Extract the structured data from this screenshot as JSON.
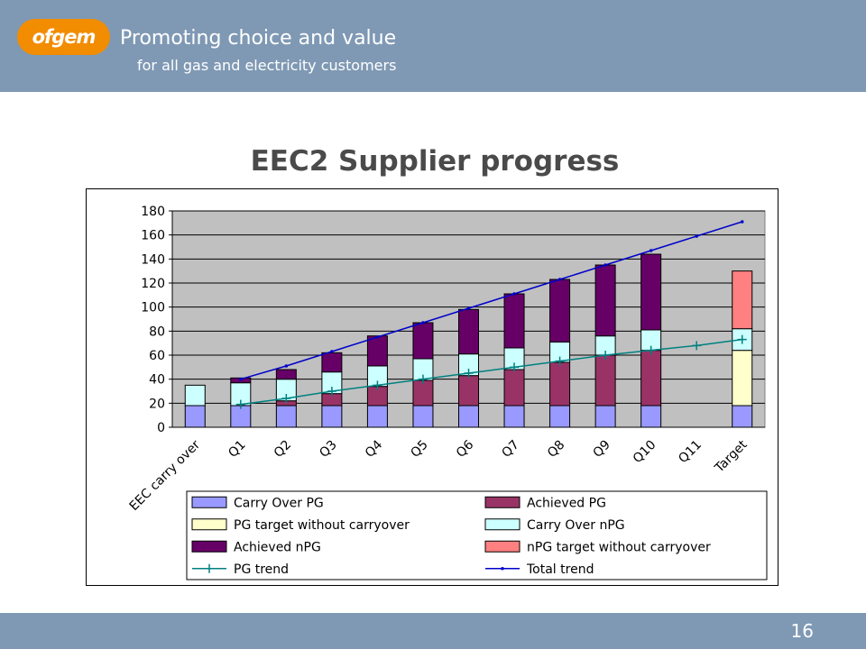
{
  "header": {
    "logo_text": "ofgem",
    "tagline_line1": "Promoting choice and value",
    "tagline_line2": "for all gas and electricity customers",
    "background_color": "#7f99b4",
    "logo_color": "#f28c00"
  },
  "slide": {
    "title": "EEC2 Supplier progress",
    "page_number": "16"
  },
  "chart_data": {
    "type": "bar",
    "stacked": true,
    "categories": [
      "EEC carry over",
      "Q1",
      "Q2",
      "Q3",
      "Q4",
      "Q5",
      "Q6",
      "Q7",
      "Q8",
      "Q9",
      "Q10",
      "Q11",
      "Target"
    ],
    "ylim": [
      0,
      180
    ],
    "yticks": [
      0,
      20,
      40,
      60,
      80,
      100,
      120,
      140,
      160,
      180
    ],
    "grid": true,
    "plot_background": "#c0c0c0",
    "legend_position": "bottom",
    "series": [
      {
        "name": "Carry Over PG",
        "kind": "bar",
        "color": "#9999ff",
        "values": [
          18,
          18,
          18,
          18,
          18,
          18,
          18,
          18,
          18,
          18,
          18,
          null,
          18
        ]
      },
      {
        "name": "Achieved PG",
        "kind": "bar",
        "color": "#993366",
        "values": [
          0,
          0,
          4,
          10,
          16,
          21,
          25,
          30,
          36,
          42,
          46,
          null,
          0
        ]
      },
      {
        "name": "PG target without carryover",
        "kind": "bar",
        "color": "#ffffcc",
        "values": [
          0,
          0,
          0,
          0,
          0,
          0,
          0,
          0,
          0,
          0,
          0,
          null,
          46
        ]
      },
      {
        "name": "Carry Over nPG",
        "kind": "bar",
        "color": "#ccffff",
        "values": [
          17,
          19,
          18,
          18,
          17,
          18,
          18,
          18,
          17,
          16,
          17,
          null,
          18
        ]
      },
      {
        "name": "Achieved nPG",
        "kind": "bar",
        "color": "#660066",
        "values": [
          0,
          4,
          8,
          16,
          25,
          30,
          37,
          45,
          52,
          59,
          63,
          null,
          0
        ]
      },
      {
        "name": "nPG target without carryover",
        "kind": "bar",
        "color": "#ff8080",
        "values": [
          0,
          0,
          0,
          0,
          0,
          0,
          0,
          0,
          0,
          0,
          0,
          null,
          48
        ]
      },
      {
        "name": "PG trend",
        "kind": "line",
        "color": "#008080",
        "marker": "plus",
        "values": [
          null,
          19,
          24,
          30,
          35,
          40,
          45,
          50,
          55,
          60,
          64,
          68,
          73
        ]
      },
      {
        "name": "Total trend",
        "kind": "line",
        "color": "#0000cc",
        "marker": "dot",
        "values": [
          null,
          40,
          51,
          63,
          75,
          87,
          99,
          111,
          123,
          135,
          147,
          159,
          171
        ]
      }
    ]
  }
}
